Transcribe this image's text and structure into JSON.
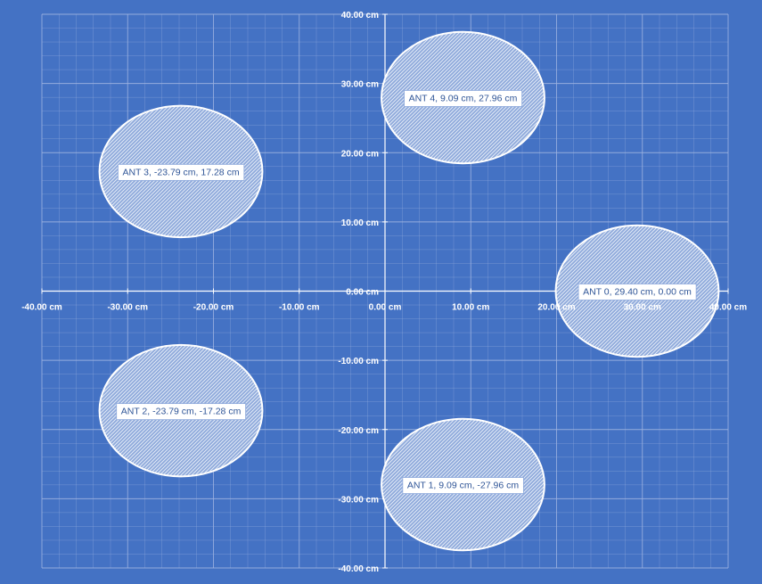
{
  "chart_data": {
    "type": "scatter",
    "xlim": [
      -40,
      40
    ],
    "ylim": [
      -40,
      40
    ],
    "unit": "cm",
    "x_ticks": [
      -40,
      -30,
      -20,
      -10,
      0,
      10,
      20,
      30,
      40
    ],
    "y_ticks": [
      40,
      30,
      20,
      10,
      0,
      -10,
      -20,
      -30,
      -40
    ],
    "x_tick_labels": [
      "-40.00 cm",
      "-30.00 cm",
      "-20.00 cm",
      "-10.00 cm",
      "0.00 cm",
      "10.00 cm",
      "20.00 cm",
      "30.00 cm",
      "40.00 cm"
    ],
    "y_tick_labels": [
      "40.00 cm",
      "30.00 cm",
      "20.00 cm",
      "10.00 cm",
      "0.00 cm",
      "-10.00 cm",
      "-20.00 cm",
      "-30.00 cm",
      "-40.00 cm"
    ],
    "grid": true,
    "minor_grid": true,
    "marker_radius": 9.5,
    "points": [
      {
        "label": "ANT 0, 29.40 cm, 0.00 cm",
        "x": 29.4,
        "y": 0.0
      },
      {
        "label": "ANT 1, 9.09 cm, -27.96 cm",
        "x": 9.09,
        "y": -27.96
      },
      {
        "label": "ANT 2, -23.79 cm, -17.28 cm",
        "x": -23.79,
        "y": -17.28
      },
      {
        "label": "ANT 3, -23.79 cm, 17.28 cm",
        "x": -23.79,
        "y": 17.28
      },
      {
        "label": "ANT 4, 9.09 cm, 27.96 cm",
        "x": 9.09,
        "y": 27.96
      }
    ]
  },
  "colors": {
    "background": "#4472C4",
    "grid": "#9DB3E0",
    "axis": "#FFFFFF",
    "marker_fill": "#B4C7E7",
    "marker_stroke": "#FFFFFF",
    "label_box": "#FFFFFF",
    "label_text": "#2F5597"
  }
}
